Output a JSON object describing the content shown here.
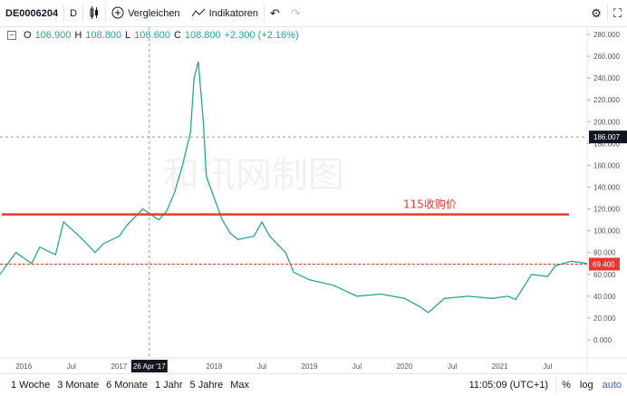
{
  "toolbar": {
    "symbol": "DE0006204",
    "interval": "D",
    "compare_label": "Vergleichen",
    "indicators_label": "Indikatoren"
  },
  "ohlc": {
    "o_label": "O",
    "o": "106.900",
    "h_label": "H",
    "h": "108.800",
    "l_label": "L",
    "l": "106.600",
    "c_label": "C",
    "c": "108.800",
    "change": "+2.300 (+2.16%)"
  },
  "colors": {
    "line": "#26a69a",
    "red": "#e53935",
    "crosshair": "#9598a1",
    "dark_badge": "#131722"
  },
  "icons": {
    "candle": "candlestick-icon",
    "compare": "plus-circle-icon",
    "indicators": "indicators-icon",
    "undo": "undo-icon",
    "redo": "redo-icon",
    "settings": "gear-icon",
    "fullscreen": "fullscreen-icon"
  },
  "chart_data": {
    "type": "line",
    "x_start": "2015-10",
    "x_end": "2021-12",
    "ylim": [
      0,
      285
    ],
    "y_ticks": [
      0,
      20,
      40,
      60,
      80,
      100,
      120,
      140,
      160,
      180,
      200,
      220,
      240,
      260,
      280
    ],
    "y_tick_labels": [
      "0.000",
      "20.000",
      "40.000",
      "60.000",
      "80.000",
      "100.000",
      "120.000",
      "140.000",
      "160.000",
      "180.000",
      "200.000",
      "220.000",
      "240.000",
      "260.000",
      "280.000"
    ],
    "x_ticks": [
      {
        "date": "2016-01",
        "label": "2016"
      },
      {
        "date": "2016-07",
        "label": "Jul"
      },
      {
        "date": "2017-01",
        "label": "2017"
      },
      {
        "date": "2018-01",
        "label": "2018"
      },
      {
        "date": "2018-07",
        "label": "Jul"
      },
      {
        "date": "2019-01",
        "label": "2019"
      },
      {
        "date": "2019-07",
        "label": "Jul"
      },
      {
        "date": "2020-01",
        "label": "2020"
      },
      {
        "date": "2020-07",
        "label": "Jul"
      },
      {
        "date": "2021-01",
        "label": "2021"
      },
      {
        "date": "2021-07",
        "label": "Jul"
      }
    ],
    "crosshair": {
      "date": "2017-04-26",
      "label": "26 Apr '17",
      "value": 186.007,
      "value_label": "186.007"
    },
    "horizontal_lines": [
      {
        "value": 115,
        "label": "115收购价",
        "style": "solid"
      },
      {
        "value": 69.4,
        "label": "69.400",
        "style": "dashed"
      }
    ],
    "watermark": "和讯网制图",
    "series": [
      {
        "x": [
          "2015-10",
          "2015-12",
          "2016-02",
          "2016-03",
          "2016-05",
          "2016-06",
          "2016-08",
          "2016-10",
          "2016-11",
          "2017-01",
          "2017-02",
          "2017-04",
          "2017-06",
          "2017-07",
          "2017-08",
          "2017-09",
          "2017-10",
          "2017-10-15",
          "2017-11",
          "2017-11-20",
          "2017-12",
          "2018-01",
          "2018-02",
          "2018-03",
          "2018-04",
          "2018-06",
          "2018-07",
          "2018-08",
          "2018-10",
          "2018-11",
          "2019-01",
          "2019-04",
          "2019-07",
          "2019-10",
          "2020-01",
          "2020-03",
          "2020-04",
          "2020-06",
          "2020-09",
          "2020-12",
          "2021-02",
          "2021-03",
          "2021-05",
          "2021-07",
          "2021-08",
          "2021-10",
          "2021-12"
        ],
        "y": [
          60,
          80,
          70,
          85,
          78,
          108,
          95,
          80,
          88,
          95,
          105,
          120,
          110,
          118,
          135,
          160,
          190,
          240,
          255,
          200,
          150,
          130,
          110,
          98,
          92,
          95,
          108,
          95,
          80,
          62,
          55,
          50,
          40,
          42,
          38,
          30,
          25,
          38,
          40,
          38,
          40,
          37,
          60,
          58,
          68,
          72,
          70
        ]
      }
    ]
  },
  "bottom": {
    "ranges": [
      "1 Woche",
      "3 Monate",
      "6 Monate",
      "1 Jahr",
      "5 Jahre",
      "Max"
    ],
    "time": "11:05:09 (UTC+1)",
    "percent": "%",
    "log": "log",
    "auto": "auto"
  }
}
